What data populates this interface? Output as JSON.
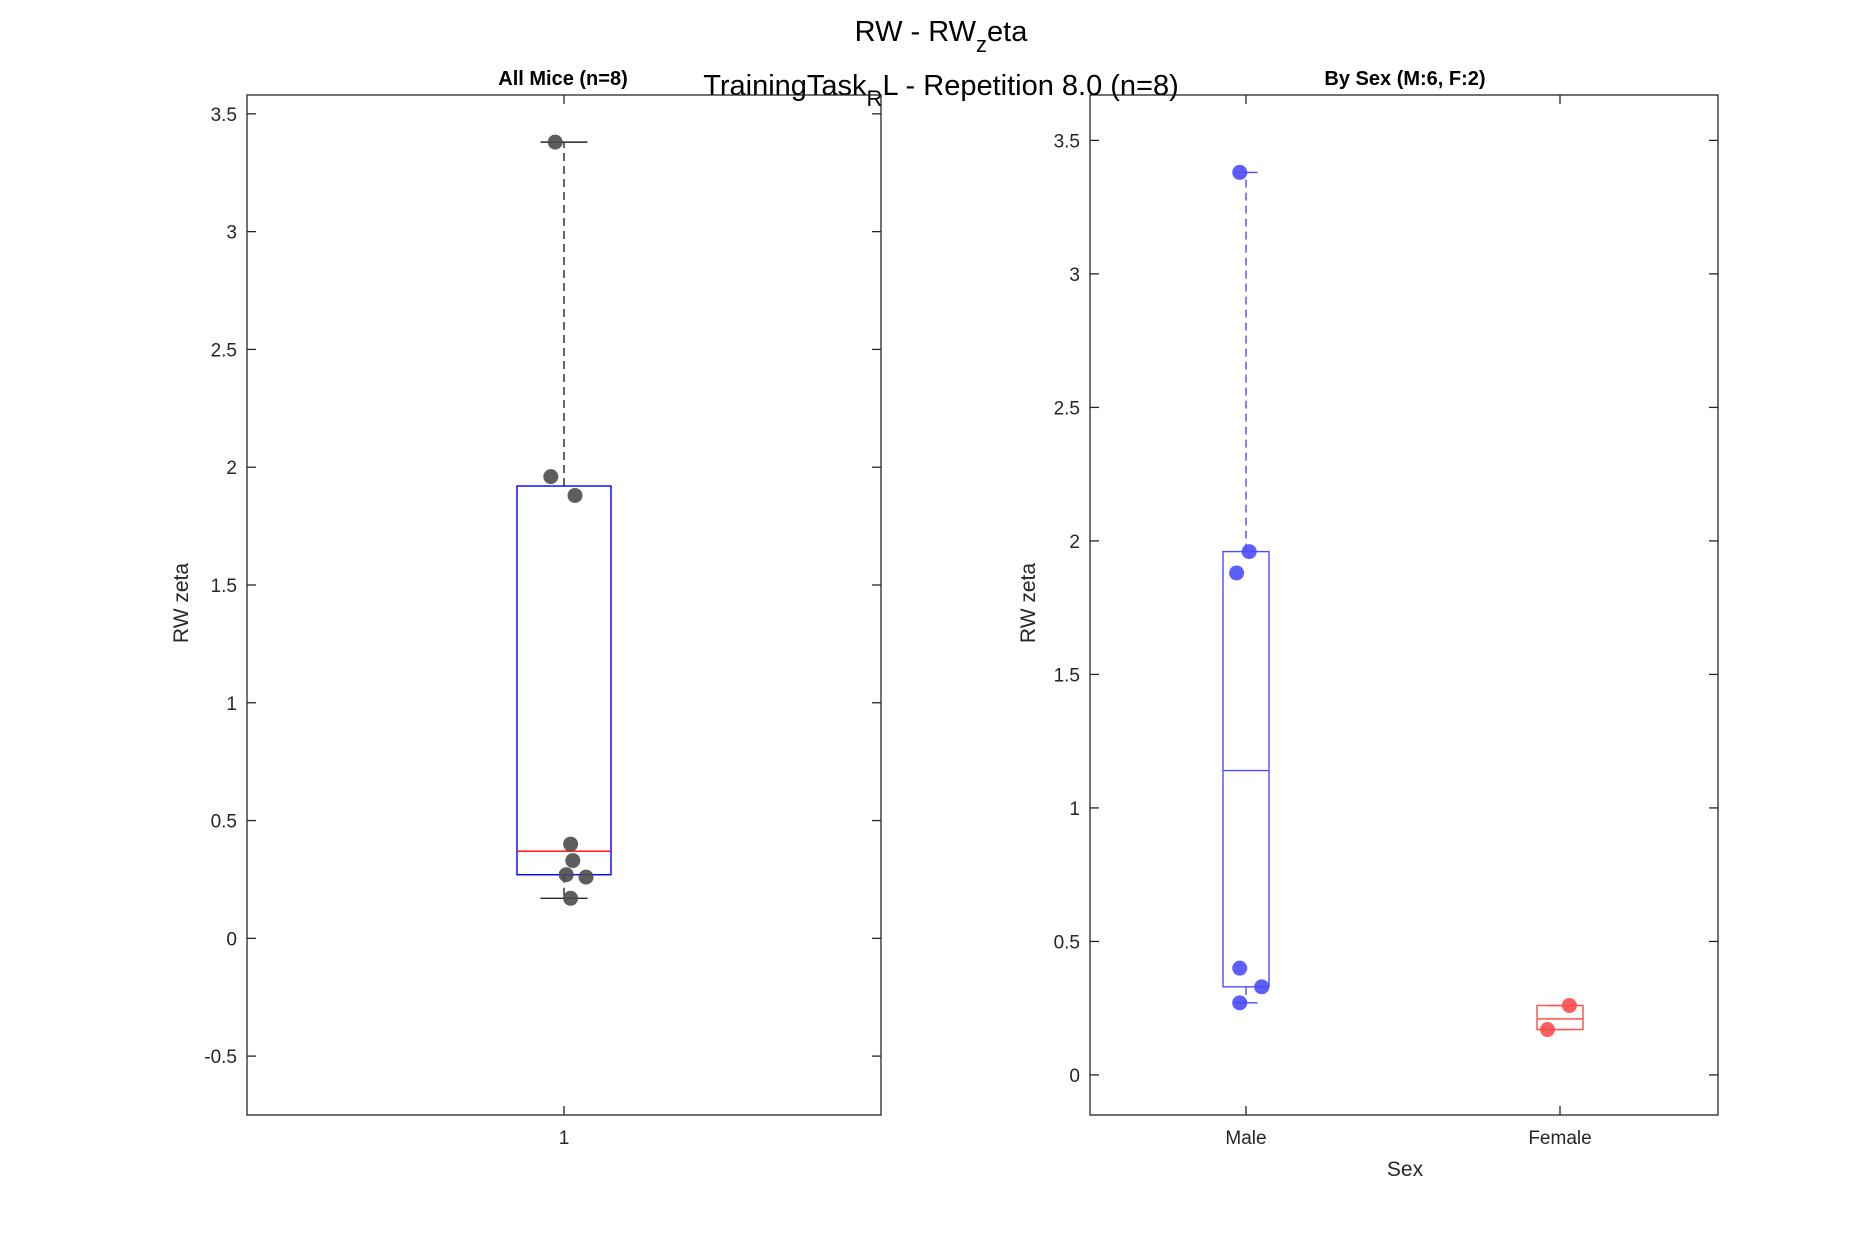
{
  "figure": {
    "title_main": "RW - RW",
    "title_sub": "z",
    "title_after": "eta",
    "subtitle_main": "TrainingTask",
    "subtitle_sub": "R",
    "subtitle_after": "L - Repetition 8.0 (n=8)"
  },
  "colors": {
    "male": "#4d4dff",
    "female": "#ff4d4d",
    "all_points": "#4d4d4d",
    "box_edge": "#0000ff",
    "median_all": "#ff0000",
    "axes": "#262626"
  },
  "chart_data": [
    {
      "type": "box",
      "title": "All Mice (n=8)",
      "xlabel": "",
      "ylabel": "RW zeta",
      "categories": [
        "1"
      ],
      "ylim": [
        -0.75,
        3.58
      ],
      "yticks": [
        -0.5,
        0,
        0.5,
        1,
        1.5,
        2,
        2.5,
        3,
        3.5
      ],
      "ytick_labels": [
        "-0.5",
        "0",
        "0.5",
        "1",
        "1.5",
        "2",
        "2.5",
        "3",
        "3.5"
      ],
      "box": {
        "q1": 0.27,
        "median": 0.37,
        "q3": 1.92,
        "whisker_low": 0.17,
        "whisker_high": 3.38
      },
      "points": [
        {
          "x": 0.96,
          "y": 3.38
        },
        {
          "x": 0.94,
          "y": 1.96
        },
        {
          "x": 1.05,
          "y": 1.88
        },
        {
          "x": 1.03,
          "y": 0.4
        },
        {
          "x": 1.04,
          "y": 0.33
        },
        {
          "x": 1.01,
          "y": 0.27
        },
        {
          "x": 1.1,
          "y": 0.26
        },
        {
          "x": 1.03,
          "y": 0.17
        }
      ]
    },
    {
      "type": "box",
      "title": "By Sex (M:6, F:2)",
      "xlabel": "Sex",
      "ylabel": "RW zeta",
      "categories": [
        "Male",
        "Female"
      ],
      "ylim": [
        -0.15,
        3.67
      ],
      "yticks": [
        0,
        0.5,
        1,
        1.5,
        2,
        2.5,
        3,
        3.5
      ],
      "ytick_labels": [
        "0",
        "0.5",
        "1",
        "1.5",
        "2",
        "2.5",
        "3",
        "3.5"
      ],
      "series": [
        {
          "category": "Male",
          "box": {
            "q1": 0.33,
            "median": 1.14,
            "q3": 1.96,
            "whisker_low": 0.27,
            "whisker_high": 3.38
          },
          "points": [
            {
              "x": 0.98,
              "y": 3.38
            },
            {
              "x": 1.01,
              "y": 1.96
            },
            {
              "x": 0.97,
              "y": 1.88
            },
            {
              "x": 0.98,
              "y": 0.4
            },
            {
              "x": 1.05,
              "y": 0.33
            },
            {
              "x": 0.98,
              "y": 0.27
            }
          ]
        },
        {
          "category": "Female",
          "box": {
            "q1": 0.17,
            "median": 0.21,
            "q3": 0.26,
            "whisker_low": 0.17,
            "whisker_high": 0.26
          },
          "points": [
            {
              "x": 2.03,
              "y": 0.26
            },
            {
              "x": 1.96,
              "y": 0.17
            }
          ]
        }
      ]
    }
  ]
}
